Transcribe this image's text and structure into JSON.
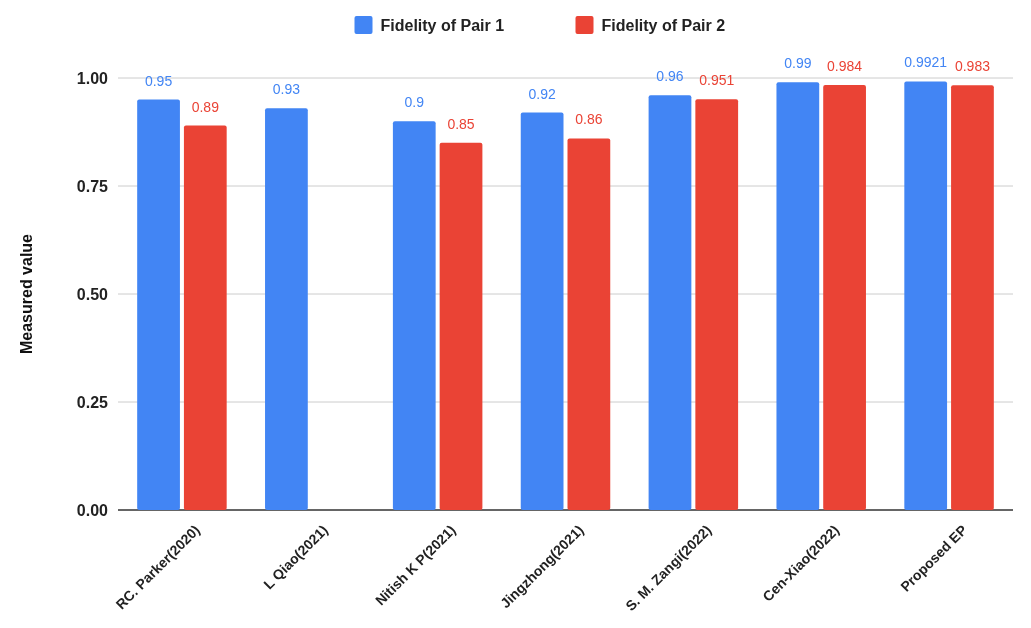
{
  "chart_data": {
    "type": "bar",
    "ylabel": "Measured value",
    "categories": [
      "RC. Parker(2020)",
      "L Qiao(2021)",
      "Nitish K P(2021)",
      "Jingzhong(2021)",
      "S. M. Zangi(2022)",
      "Cen-Xiao(2022)",
      "Proposed EP"
    ],
    "series": [
      {
        "name": "Fidelity of Pair 1",
        "color": "#4285f4",
        "values": [
          0.95,
          0.93,
          0.9,
          0.92,
          0.96,
          0.99,
          0.9921
        ]
      },
      {
        "name": "Fidelity of Pair 2",
        "color": "#ea4335",
        "values": [
          0.89,
          null,
          0.85,
          0.86,
          0.951,
          0.984,
          0.983
        ]
      }
    ],
    "ylim": [
      0,
      1.0
    ],
    "yticks": [
      {
        "value": 0,
        "label": "0.00"
      },
      {
        "value": 0.25,
        "label": "0.25"
      },
      {
        "value": 0.5,
        "label": "0.50"
      },
      {
        "value": 0.75,
        "label": "0.75"
      },
      {
        "value": 1,
        "label": "1.00"
      }
    ],
    "grid": "y",
    "legend": "top",
    "data_labels": true
  }
}
